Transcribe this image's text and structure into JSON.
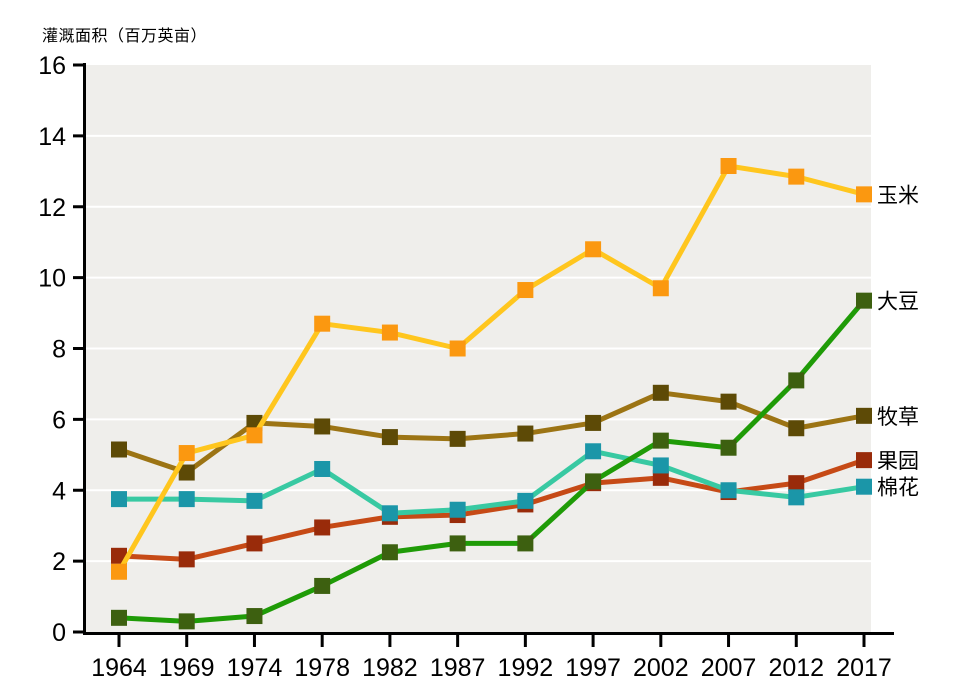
{
  "chart_data": {
    "type": "line",
    "title": "灌溉面积（百万英亩）",
    "ylabel": "灌溉面积（百万英亩）",
    "xlabel": "",
    "categories": [
      "1964",
      "1969",
      "1974",
      "1978",
      "1982",
      "1987",
      "1992",
      "1997",
      "2002",
      "2007",
      "2012",
      "2017"
    ],
    "ylim": [
      0,
      16
    ],
    "yticks": [
      0,
      2,
      4,
      6,
      8,
      10,
      12,
      14,
      16
    ],
    "grid": "horizontal white gridlines on light-gray panel",
    "legend_position": "right of last data point, outside plot",
    "panel_color": "#efeeeb",
    "gridline_color": "#ffffff",
    "axis_color": "#000000",
    "series": [
      {
        "key": "corn",
        "name": "玉米",
        "line_color": "#ffc61e",
        "marker_color": "#fb9810",
        "values": [
          1.7,
          5.05,
          5.55,
          8.7,
          8.45,
          8.0,
          9.65,
          10.8,
          9.7,
          13.15,
          12.85,
          12.35
        ]
      },
      {
        "key": "soybeans",
        "name": "大豆",
        "line_color": "#1f9b07",
        "marker_color": "#3d6010",
        "values": [
          0.4,
          0.3,
          0.45,
          1.3,
          2.25,
          2.5,
          2.5,
          4.25,
          5.4,
          5.2,
          7.1,
          9.35
        ]
      },
      {
        "key": "hay",
        "name": "牧草",
        "line_color": "#9c7414",
        "marker_color": "#5d4a06",
        "values": [
          5.15,
          4.5,
          5.9,
          5.8,
          5.5,
          5.45,
          5.6,
          5.9,
          6.75,
          6.5,
          5.75,
          6.1
        ]
      },
      {
        "key": "orchard",
        "name": "果园",
        "line_color": "#c64a16",
        "marker_color": "#992b0a",
        "values": [
          2.15,
          2.05,
          2.5,
          2.95,
          3.25,
          3.3,
          3.6,
          4.2,
          4.35,
          3.95,
          4.2,
          4.85
        ]
      },
      {
        "key": "cotton",
        "name": "棉花",
        "line_color": "#38c9a2",
        "marker_color": "#1b96a8",
        "values": [
          3.75,
          3.75,
          3.7,
          4.6,
          3.35,
          3.45,
          3.7,
          5.1,
          4.7,
          4.0,
          3.8,
          4.1
        ]
      }
    ],
    "draw_order": [
      "orchard",
      "hay",
      "cotton",
      "corn",
      "soybeans"
    ]
  }
}
